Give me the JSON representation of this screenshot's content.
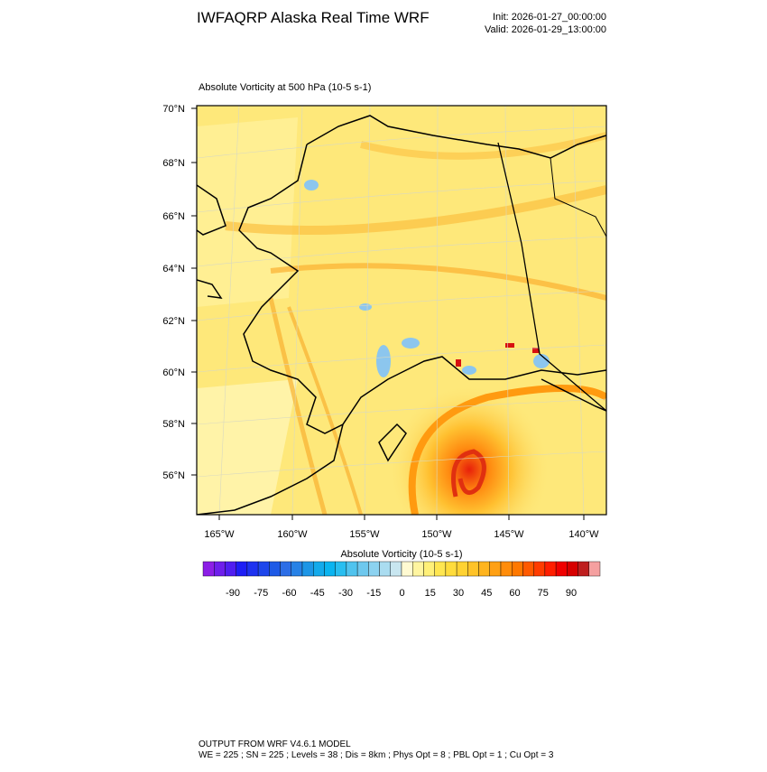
{
  "header": {
    "title": "IWFAQRP Alaska Real Time WRF",
    "init": "Init: 2026-01-27_00:00:00",
    "valid": "Valid: 2026-01-29_13:00:00"
  },
  "map": {
    "subtitle": "Absolute Vorticity at 500 hPa   (10-5 s-1)",
    "lat_labels": [
      "70°N",
      "68°N",
      "66°N",
      "64°N",
      "62°N",
      "60°N",
      "58°N",
      "56°N"
    ],
    "lon_labels": [
      "165°W",
      "160°W",
      "155°W",
      "150°W",
      "145°W",
      "140°W"
    ]
  },
  "colorbar": {
    "title": "Absolute Vorticity  (10-5 s-1)",
    "ticks": [
      "-90",
      "-75",
      "-60",
      "-45",
      "-30",
      "-15",
      "0",
      "15",
      "30",
      "45",
      "60",
      "75",
      "90"
    ],
    "colors": [
      "#8c1ee6",
      "#6e1eeb",
      "#501ef0",
      "#1e1ef5",
      "#1e32f0",
      "#1e46eb",
      "#1e5ae6",
      "#2d6ee6",
      "#2882e6",
      "#1e96e6",
      "#14aaeb",
      "#0ab4f0",
      "#28bef0",
      "#50c3ee",
      "#6ec8ee",
      "#8cd2f0",
      "#aadcf0",
      "#c8e6f0",
      "#fffad2",
      "#fff5a0",
      "#fff078",
      "#ffe650",
      "#ffdc3c",
      "#ffd232",
      "#ffc328",
      "#ffb41e",
      "#ffa014",
      "#ff8c0a",
      "#ff7800",
      "#ff5a00",
      "#ff3c00",
      "#ff1e00",
      "#f00000",
      "#d70000",
      "#be1e1e",
      "#f5a0a0"
    ]
  },
  "footer": {
    "line1": "OUTPUT FROM WRF V4.6.1 MODEL",
    "line2": "WE = 225 ; SN = 225 ; Levels = 38 ; Dis = 8km ; Phys Opt = 8 ; PBL Opt = 1 ; Cu Opt = 3"
  }
}
